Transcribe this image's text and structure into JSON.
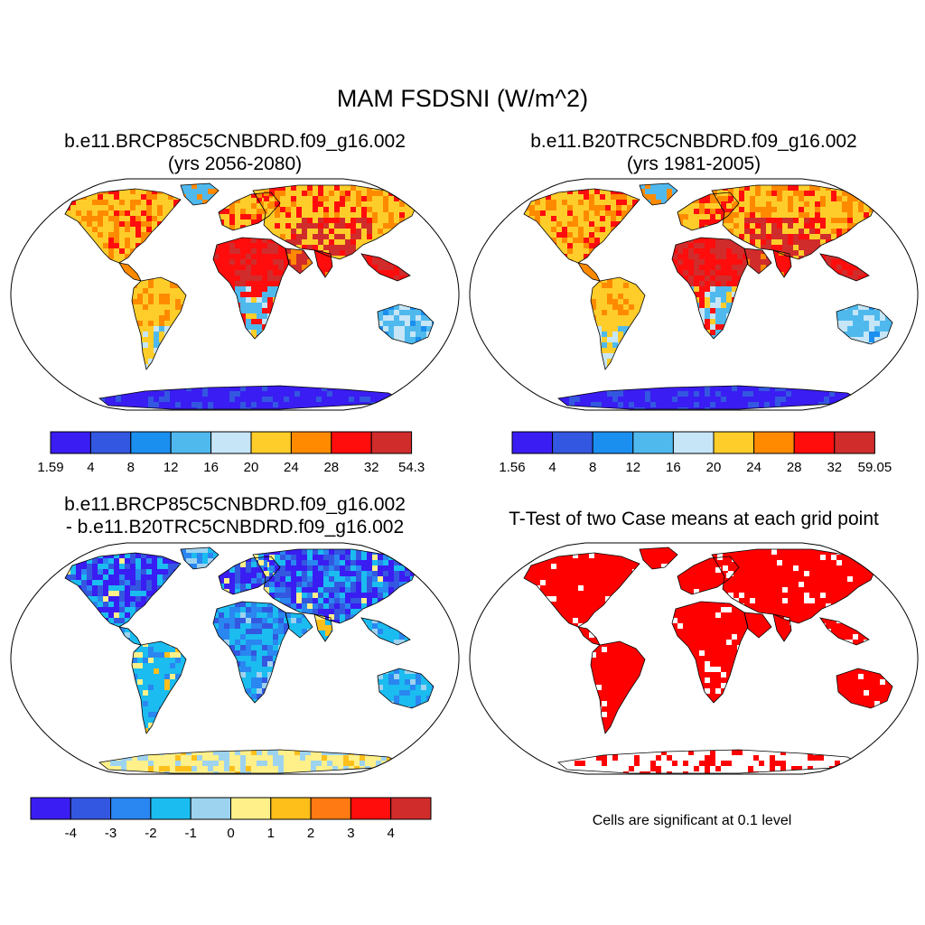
{
  "figure": {
    "title": "MAM FSDSNI (W/m^2)"
  },
  "panels": [
    {
      "id": "case",
      "title_line1": "b.e11.BRCP85C5CNBDRD.f09_g16.002",
      "title_line2": "(yrs 2056-2080)",
      "colorbar": {
        "colors": [
          "#3a1df2",
          "#3357e0",
          "#1b8ff0",
          "#4fb9ee",
          "#c6e6f7",
          "#ffcd2a",
          "#ff8a00",
          "#ff0d0d",
          "#d02c2c"
        ],
        "labels": [
          "1.59",
          "4",
          "8",
          "12",
          "16",
          "20",
          "24",
          "28",
          "32",
          "54.3"
        ]
      }
    },
    {
      "id": "control",
      "title_line1": "b.e11.B20TRC5CNBDRD.f09_g16.002",
      "title_line2": "(yrs 1981-2005)",
      "colorbar": {
        "colors": [
          "#3a1df2",
          "#3357e0",
          "#1b8ff0",
          "#4fb9ee",
          "#c6e6f7",
          "#ffcd2a",
          "#ff8a00",
          "#ff0d0d",
          "#d02c2c"
        ],
        "labels": [
          "1.56",
          "4",
          "8",
          "12",
          "16",
          "20",
          "24",
          "28",
          "32",
          "59.05"
        ]
      }
    },
    {
      "id": "difference",
      "title_line1": "b.e11.BRCP85C5CNBDRD.f09_g16.002",
      "title_line2": "- b.e11.B20TRC5CNBDRD.f09_g16.002",
      "colorbar": {
        "colors": [
          "#3a1df2",
          "#3357e0",
          "#2a86f0",
          "#1bbcf0",
          "#9ed3f0",
          "#fff08a",
          "#ffbf1a",
          "#ff7a12",
          "#ff0d0d",
          "#d02c2c"
        ],
        "labels": [
          "-4",
          "-3",
          "-2",
          "-1",
          "0",
          "1",
          "2",
          "3",
          "4"
        ]
      }
    },
    {
      "id": "ttest",
      "title_line1": "T-Test of two Case means at each grid point",
      "note": "Cells are significant at 0.1 level",
      "significance_color": "#ff0000"
    }
  ],
  "map_colors": {
    "land_outline": "#000000",
    "ocean": "#ffffff"
  }
}
